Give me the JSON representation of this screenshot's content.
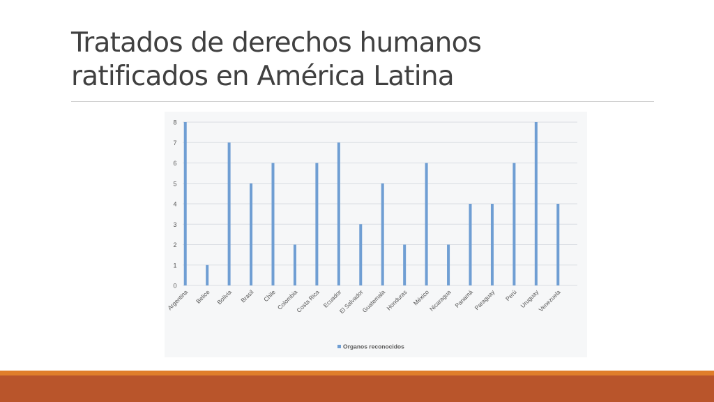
{
  "slide": {
    "title_line1": "Tratados de derechos humanos",
    "title_line2": "ratificados en América Latina"
  },
  "colors": {
    "bar": "#6f9ed3",
    "grid": "#d9dde2",
    "tick_text": "#555555",
    "footer_accent": "#e07e2a",
    "footer_main": "#b9552b"
  },
  "chart_data": {
    "type": "bar",
    "title": "",
    "xlabel": "",
    "ylabel": "",
    "ylim": [
      0,
      8
    ],
    "y_ticks": [
      0,
      1,
      2,
      3,
      4,
      5,
      6,
      7,
      8
    ],
    "grid": true,
    "legend_position": "bottom",
    "categories": [
      "Argentina",
      "Belice",
      "Bolivia",
      "Brasil",
      "Chile",
      "Colombia",
      "Costa Rica",
      "Ecuador",
      "El Salvador",
      "Guatemala",
      "Honduras",
      "México",
      "Nicaragua",
      "Panamá",
      "Paraguay",
      "Perú",
      "Uruguay",
      "Venezuela"
    ],
    "series": [
      {
        "name": "Organos reconocidos",
        "values": [
          8,
          1,
          7,
          5,
          6,
          2,
          6,
          7,
          3,
          5,
          2,
          6,
          2,
          4,
          4,
          6,
          8,
          4
        ]
      }
    ]
  }
}
